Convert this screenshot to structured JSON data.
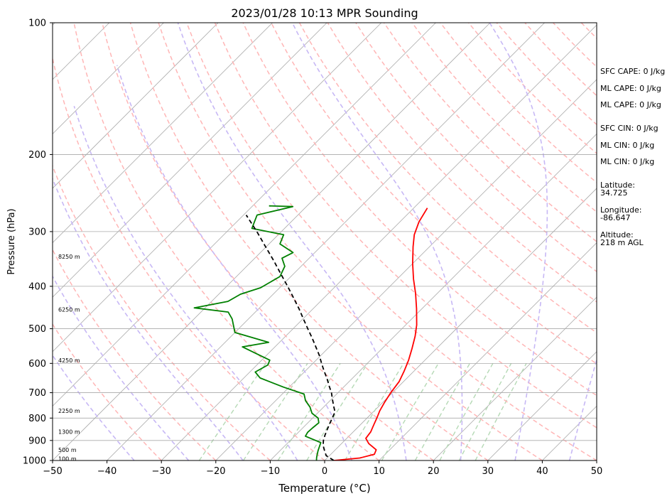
{
  "chart_data": {
    "type": "line",
    "title": "2023/01/28 10:13 MPR Sounding",
    "xlabel": "Temperature (°C)",
    "ylabel": "Pressure (hPa)",
    "xlim": [
      -50,
      50
    ],
    "ylim": [
      1000,
      100
    ],
    "y_scale": "log",
    "x_ticks": [
      "−50",
      "−40",
      "−30",
      "−20",
      "−10",
      "0",
      "10",
      "20",
      "30",
      "40",
      "50"
    ],
    "y_ticks": [
      1000,
      900,
      800,
      700,
      600,
      500,
      400,
      300,
      200,
      100
    ],
    "grid": true,
    "skew": "skew-T log-P",
    "series": [
      {
        "color": "#ff0000",
        "points": [
          [
            1.7,
            1000
          ],
          [
            6,
            987
          ],
          [
            8,
            968
          ],
          [
            7.5,
            945
          ],
          [
            5,
            915
          ],
          [
            3.5,
            890
          ],
          [
            3.2,
            860
          ],
          [
            2.5,
            830
          ],
          [
            1.8,
            800
          ],
          [
            1,
            770
          ],
          [
            0.3,
            735
          ],
          [
            -0.3,
            700
          ],
          [
            -0.8,
            660
          ],
          [
            -1.8,
            625
          ],
          [
            -3,
            590
          ],
          [
            -4.5,
            555
          ],
          [
            -6.2,
            520
          ],
          [
            -8,
            490
          ],
          [
            -11,
            450
          ],
          [
            -14,
            415
          ],
          [
            -17,
            385
          ],
          [
            -20,
            355
          ],
          [
            -23,
            325
          ],
          [
            -25,
            305
          ],
          [
            -26.5,
            285
          ],
          [
            -27.5,
            265
          ]
        ]
      },
      {
        "color": "#008000",
        "points": [
          [
            -1.5,
            1000
          ],
          [
            -2,
            985
          ],
          [
            -2.5,
            968
          ],
          [
            -3,
            950
          ],
          [
            -3.5,
            930
          ],
          [
            -4,
            910
          ],
          [
            -6,
            895
          ],
          [
            -8,
            880
          ],
          [
            -8.3,
            862
          ],
          [
            -8.2,
            842
          ],
          [
            -8,
            820
          ],
          [
            -9,
            800
          ],
          [
            -11,
            780
          ],
          [
            -12.5,
            755
          ],
          [
            -14.5,
            730
          ],
          [
            -16,
            705
          ],
          [
            -21,
            680
          ],
          [
            -27,
            648
          ],
          [
            -29,
            628
          ],
          [
            -28,
            605
          ],
          [
            -28.5,
            590
          ],
          [
            -32.2,
            570
          ],
          [
            -36,
            550
          ],
          [
            -32,
            537
          ],
          [
            -40,
            510
          ],
          [
            -43,
            475
          ],
          [
            -45,
            458
          ],
          [
            -52,
            448
          ],
          [
            -47,
            433
          ],
          [
            -46,
            417
          ],
          [
            -43.5,
            403
          ],
          [
            -42,
            380
          ],
          [
            -43,
            360
          ],
          [
            -45,
            345
          ],
          [
            -44,
            335
          ],
          [
            -48,
            320
          ],
          [
            -49,
            305
          ],
          [
            -56,
            295
          ],
          [
            -57.5,
            275
          ],
          [
            -52.5,
            263
          ],
          [
            -57,
            262
          ]
        ]
      },
      {
        "color": "#000000",
        "dashed": true,
        "points": [
          [
            1.7,
            1000
          ],
          [
            -0.6,
            975
          ],
          [
            -1.8,
            950
          ],
          [
            -3.0,
            925
          ],
          [
            -3.9,
            900
          ],
          [
            -4.6,
            875
          ],
          [
            -5.2,
            850
          ],
          [
            -5.8,
            825
          ],
          [
            -6.4,
            800
          ],
          [
            -7.0,
            775
          ],
          [
            -8.4,
            750
          ],
          [
            -9.8,
            725
          ],
          [
            -11.2,
            700
          ],
          [
            -12.9,
            675
          ],
          [
            -14.6,
            650
          ],
          [
            -16.5,
            625
          ],
          [
            -18.4,
            600
          ],
          [
            -20.3,
            575
          ],
          [
            -22.5,
            550
          ],
          [
            -24.8,
            525
          ],
          [
            -27.3,
            500
          ],
          [
            -29.9,
            475
          ],
          [
            -32.6,
            450
          ],
          [
            -35.6,
            425
          ],
          [
            -38.8,
            400
          ],
          [
            -42.3,
            375
          ],
          [
            -46.0,
            350
          ],
          [
            -50.1,
            325
          ],
          [
            -54.5,
            300
          ],
          [
            -59.5,
            275
          ]
        ]
      }
    ],
    "height_labels": [
      {
        "text": "100 m",
        "p": 990
      },
      {
        "text": "500 m",
        "p": 945
      },
      {
        "text": "1300 m",
        "p": 860
      },
      {
        "text": "2250 m",
        "p": 770
      },
      {
        "text": "4250 m",
        "p": 590
      },
      {
        "text": "6250 m",
        "p": 452
      },
      {
        "text": "8250 m",
        "p": 342
      }
    ],
    "annotations": [
      "SFC CAPE: 0 J/kg",
      "ML CAPE: 0 J/kg",
      "ML CAPE: 0 J/kg",
      "SFC CIN: 0 J/kg",
      "ML CIN: 0 J/kg",
      "ML CIN: 0 J/kg",
      "Latitude:",
      "34.725",
      "Longitude:",
      "-86.647",
      "Altitude:",
      "218 m AGL"
    ],
    "colors": {
      "isotherm": "#aaaaaa",
      "dry_adiabat": "#ffb6b6",
      "moist_adiabat": "#c7b8f5",
      "mixing_ratio": "#b5d9b5",
      "temperature": "#ff0000",
      "dewpoint": "#008000",
      "parcel": "#000000"
    }
  }
}
